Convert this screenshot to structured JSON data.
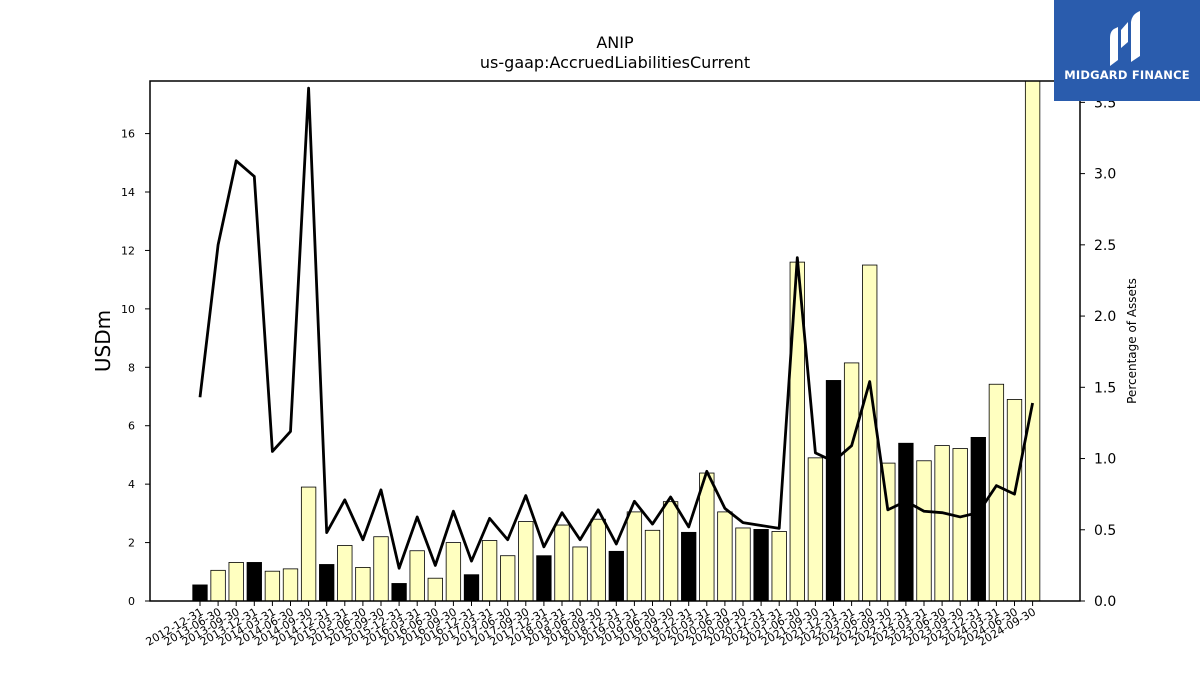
{
  "chart_data": {
    "type": "bar",
    "title": "ANIP",
    "subtitle": "us-gaap:AccruedLiabilitiesCurrent",
    "ylabel": "USDm",
    "y2label": "Percentage of Assets",
    "ylim": [
      0,
      17.8
    ],
    "y2lim": [
      0,
      3.65
    ],
    "yticks": [
      0,
      2,
      4,
      6,
      8,
      10,
      12,
      14,
      16
    ],
    "y2ticks": [
      "0.0",
      "0.5",
      "1.0",
      "1.5",
      "2.0",
      "2.5",
      "3.0",
      "3.5"
    ],
    "categories": [
      "2012-12-31",
      "2013-06-30",
      "2013-09-30",
      "2013-12-31",
      "2014-03-31",
      "2014-06-30",
      "2014-09-30",
      "2014-12-31",
      "2015-03-31",
      "2015-06-30",
      "2015-09-30",
      "2015-12-31",
      "2016-03-31",
      "2016-06-30",
      "2016-09-30",
      "2016-12-31",
      "2017-03-31",
      "2017-06-30",
      "2017-09-30",
      "2017-12-31",
      "2018-03-31",
      "2018-06-30",
      "2018-09-30",
      "2018-12-31",
      "2019-03-31",
      "2019-06-30",
      "2019-09-30",
      "2019-12-31",
      "2020-03-31",
      "2020-06-30",
      "2020-09-30",
      "2020-12-31",
      "2021-03-31",
      "2021-06-30",
      "2021-09-30",
      "2021-12-31",
      "2022-03-31",
      "2022-06-30",
      "2022-09-30",
      "2022-12-31",
      "2023-03-31",
      "2023-06-30",
      "2023-09-30",
      "2023-12-31",
      "2024-03-31",
      "2024-06-30",
      "2024-09-30"
    ],
    "series": [
      {
        "type": "bar",
        "values": [
          0.55,
          1.05,
          1.32,
          1.32,
          1.02,
          1.1,
          3.9,
          1.25,
          1.9,
          1.15,
          2.2,
          0.6,
          1.72,
          0.78,
          2.0,
          0.9,
          2.07,
          1.55,
          2.72,
          1.55,
          2.6,
          1.85,
          2.8,
          1.7,
          3.05,
          2.42,
          3.4,
          2.35,
          4.38,
          3.05,
          2.5,
          2.45,
          2.38,
          11.6,
          4.9,
          7.55,
          8.15,
          11.5,
          4.72,
          5.4,
          4.8,
          5.32,
          5.22,
          5.6,
          7.42,
          6.9,
          17.8
        ],
        "year_end": [
          true,
          false,
          false,
          true,
          false,
          false,
          false,
          true,
          false,
          false,
          false,
          true,
          false,
          false,
          false,
          true,
          false,
          false,
          false,
          true,
          false,
          false,
          false,
          true,
          false,
          false,
          false,
          true,
          false,
          false,
          false,
          true,
          false,
          false,
          false,
          true,
          false,
          false,
          false,
          true,
          false,
          false,
          false,
          true,
          false,
          false,
          false
        ]
      },
      {
        "type": "line",
        "axis": "right",
        "values": [
          1.43,
          2.5,
          3.09,
          2.98,
          1.05,
          1.19,
          3.6,
          0.48,
          0.71,
          0.43,
          0.78,
          0.23,
          0.59,
          0.25,
          0.63,
          0.28,
          0.58,
          0.43,
          0.74,
          0.38,
          0.62,
          0.43,
          0.64,
          0.4,
          0.7,
          0.54,
          0.73,
          0.52,
          0.91,
          0.65,
          0.55,
          0.53,
          0.51,
          2.41,
          1.04,
          0.98,
          1.09,
          1.54,
          0.64,
          0.7,
          0.63,
          0.62,
          0.59,
          0.62,
          0.81,
          0.75,
          1.39
        ]
      }
    ],
    "colors": {
      "bar_fill": "#ffffc0",
      "bar_year_end": "#000000",
      "line": "#000000"
    }
  },
  "logo": {
    "text": "MIDGARD FINANCE",
    "color": "#2a5cad"
  }
}
